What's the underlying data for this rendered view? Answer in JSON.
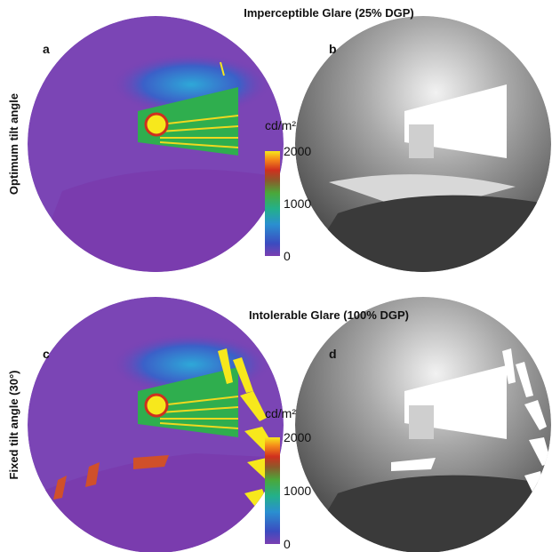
{
  "panels": [
    {
      "title": "Imperceptible Glare (25% DGP)",
      "row_label": "Optimum tilt angle",
      "left_label": "a",
      "right_label": "b",
      "colorbar": {
        "unit": "cd/m²",
        "ticks": [
          0,
          1000,
          2000
        ]
      }
    },
    {
      "title": "Intolerable Glare (100% DGP)",
      "row_label": "Fixed tilt angle (30°)",
      "left_label": "c",
      "right_label": "d",
      "colorbar": {
        "unit": "cd/m²",
        "ticks": [
          0,
          1000,
          2000
        ]
      }
    }
  ]
}
